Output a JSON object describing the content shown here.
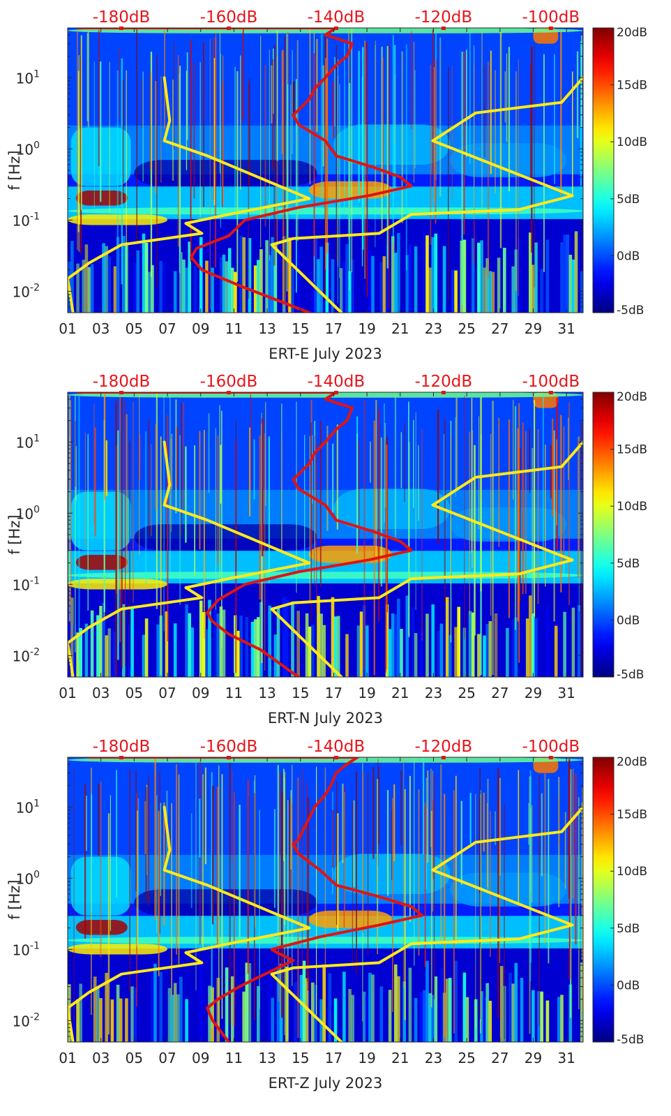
{
  "colors": {
    "reference_curve": "#ffea1a",
    "noise_curve": "#e01414",
    "top_labels": "#e8141a",
    "axis_text": "#262626",
    "colormap": "jet"
  },
  "chart_data": [
    {
      "type": "heatmap",
      "xlabel": "ERT-E July 2023",
      "ylabel": "f [Hz]",
      "x_tick_labels": [
        "01",
        "03",
        "05",
        "07",
        "09",
        "11",
        "13",
        "15",
        "17",
        "19",
        "21",
        "23",
        "25",
        "27",
        "29",
        "31"
      ],
      "x_tick_days": [
        1,
        3,
        5,
        7,
        9,
        11,
        13,
        15,
        17,
        19,
        21,
        23,
        25,
        27,
        29,
        31
      ],
      "xlim": [
        1,
        32
      ],
      "y_scale": "log",
      "ylim": [
        0.005,
        50
      ],
      "y_tick_labels": [
        {
          "base": "10",
          "exp": "-2"
        },
        {
          "base": "10",
          "exp": "-1"
        },
        {
          "base": "10",
          "exp": "0"
        },
        {
          "base": "10",
          "exp": "1"
        }
      ],
      "y_tick_values": [
        0.01,
        0.1,
        1,
        10
      ],
      "top_axis_labels": [
        "-180dB",
        "-160dB",
        "-140dB",
        "-120dB",
        "-100dB"
      ],
      "top_axis_values": [
        -180,
        -160,
        -140,
        -120,
        -100
      ],
      "top_axis_range": [
        -190,
        -94
      ],
      "colorbar": {
        "labels": [
          "20dB",
          "15dB",
          "10dB",
          "5dB",
          "0dB",
          "-5dB"
        ],
        "values": [
          20,
          15,
          10,
          5,
          0,
          -5
        ],
        "range": [
          -5,
          20
        ]
      },
      "yellow_curves": [
        [
          [
            -172,
            10
          ],
          [
            -171,
            2.5
          ],
          [
            -172,
            1.3
          ],
          [
            -164,
            0.8
          ],
          [
            -145,
            0.2
          ],
          [
            -160,
            0.12
          ],
          [
            -168,
            0.09
          ],
          [
            -165,
            0.065
          ],
          [
            -180,
            0.045
          ],
          [
            -186,
            0.025
          ],
          [
            -190,
            0.015
          ],
          [
            -189,
            0.005
          ]
        ],
        [
          [
            -94,
            10
          ],
          [
            -98,
            4.5
          ],
          [
            -114,
            3.2
          ],
          [
            -122,
            1.3
          ],
          [
            -96,
            0.22
          ],
          [
            -106,
            0.14
          ],
          [
            -126,
            0.12
          ],
          [
            -132,
            0.065
          ],
          [
            -148,
            0.055
          ],
          [
            -152,
            0.045
          ],
          [
            -139,
            0.005
          ]
        ]
      ],
      "red_curve": [
        [
          -188,
          50
        ],
        [
          -140,
          50
        ],
        [
          -142,
          40
        ],
        [
          -137,
          30
        ],
        [
          -138,
          20
        ],
        [
          -140,
          15
        ],
        [
          -142,
          10
        ],
        [
          -144,
          7
        ],
        [
          -145,
          5
        ],
        [
          -147,
          3.5
        ],
        [
          -148,
          3
        ],
        [
          -147,
          2.2
        ],
        [
          -142,
          1.3
        ],
        [
          -140,
          0.8
        ],
        [
          -133,
          0.55
        ],
        [
          -128,
          0.4
        ],
        [
          -126,
          0.3
        ],
        [
          -134,
          0.22
        ],
        [
          -147,
          0.15
        ],
        [
          -157,
          0.1
        ],
        [
          -160,
          0.06
        ],
        [
          -166,
          0.04
        ],
        [
          -167,
          0.03
        ],
        [
          -165,
          0.02
        ],
        [
          -158,
          0.012
        ],
        [
          -145,
          0.005
        ]
      ]
    },
    {
      "type": "heatmap",
      "xlabel": "ERT-N July 2023",
      "ylabel": "f [Hz]",
      "x_tick_labels": [
        "01",
        "03",
        "05",
        "07",
        "09",
        "11",
        "13",
        "15",
        "17",
        "19",
        "21",
        "23",
        "25",
        "27",
        "29",
        "31"
      ],
      "x_tick_days": [
        1,
        3,
        5,
        7,
        9,
        11,
        13,
        15,
        17,
        19,
        21,
        23,
        25,
        27,
        29,
        31
      ],
      "xlim": [
        1,
        32
      ],
      "y_scale": "log",
      "ylim": [
        0.005,
        50
      ],
      "y_tick_labels": [
        {
          "base": "10",
          "exp": "-2"
        },
        {
          "base": "10",
          "exp": "-1"
        },
        {
          "base": "10",
          "exp": "0"
        },
        {
          "base": "10",
          "exp": "1"
        }
      ],
      "y_tick_values": [
        0.01,
        0.1,
        1,
        10
      ],
      "top_axis_labels": [
        "-180dB",
        "-160dB",
        "-140dB",
        "-120dB",
        "-100dB"
      ],
      "top_axis_values": [
        -180,
        -160,
        -140,
        -120,
        -100
      ],
      "top_axis_range": [
        -190,
        -94
      ],
      "colorbar": {
        "labels": [
          "20dB",
          "15dB",
          "10dB",
          "5dB",
          "0dB",
          "-5dB"
        ],
        "values": [
          20,
          15,
          10,
          5,
          0,
          -5
        ],
        "range": [
          -5,
          20
        ]
      },
      "yellow_curves": [
        [
          [
            -172,
            10
          ],
          [
            -171,
            2.5
          ],
          [
            -172,
            1.3
          ],
          [
            -164,
            0.8
          ],
          [
            -145,
            0.2
          ],
          [
            -160,
            0.12
          ],
          [
            -168,
            0.09
          ],
          [
            -165,
            0.065
          ],
          [
            -180,
            0.045
          ],
          [
            -186,
            0.025
          ],
          [
            -190,
            0.015
          ],
          [
            -189,
            0.005
          ]
        ],
        [
          [
            -94,
            10
          ],
          [
            -98,
            4.5
          ],
          [
            -114,
            3.2
          ],
          [
            -122,
            1.3
          ],
          [
            -96,
            0.22
          ],
          [
            -106,
            0.14
          ],
          [
            -126,
            0.12
          ],
          [
            -132,
            0.065
          ],
          [
            -148,
            0.055
          ],
          [
            -152,
            0.045
          ],
          [
            -139,
            0.005
          ]
        ]
      ],
      "red_curve": [
        [
          -188,
          50
        ],
        [
          -140,
          50
        ],
        [
          -142,
          40
        ],
        [
          -137,
          30
        ],
        [
          -138,
          20
        ],
        [
          -140,
          15
        ],
        [
          -142,
          10
        ],
        [
          -144,
          7
        ],
        [
          -145,
          5
        ],
        [
          -147,
          3.5
        ],
        [
          -148,
          3
        ],
        [
          -147,
          2.2
        ],
        [
          -142,
          1.3
        ],
        [
          -140,
          0.8
        ],
        [
          -133,
          0.55
        ],
        [
          -128,
          0.4
        ],
        [
          -126,
          0.3
        ],
        [
          -134,
          0.22
        ],
        [
          -147,
          0.15
        ],
        [
          -157,
          0.1
        ],
        [
          -162,
          0.06
        ],
        [
          -164,
          0.04
        ],
        [
          -163,
          0.03
        ],
        [
          -160,
          0.02
        ],
        [
          -154,
          0.012
        ],
        [
          -147,
          0.005
        ]
      ]
    },
    {
      "type": "heatmap",
      "xlabel": "ERT-Z July 2023",
      "ylabel": "f [Hz]",
      "x_tick_labels": [
        "01",
        "03",
        "05",
        "07",
        "09",
        "11",
        "13",
        "15",
        "17",
        "19",
        "21",
        "23",
        "25",
        "27",
        "29",
        "31"
      ],
      "x_tick_days": [
        1,
        3,
        5,
        7,
        9,
        11,
        13,
        15,
        17,
        19,
        21,
        23,
        25,
        27,
        29,
        31
      ],
      "xlim": [
        1,
        32
      ],
      "y_scale": "log",
      "ylim": [
        0.005,
        50
      ],
      "y_tick_labels": [
        {
          "base": "10",
          "exp": "-2"
        },
        {
          "base": "10",
          "exp": "-1"
        },
        {
          "base": "10",
          "exp": "0"
        },
        {
          "base": "10",
          "exp": "1"
        }
      ],
      "y_tick_values": [
        0.01,
        0.1,
        1,
        10
      ],
      "top_axis_labels": [
        "-180dB",
        "-160dB",
        "-140dB",
        "-120dB",
        "-100dB"
      ],
      "top_axis_values": [
        -180,
        -160,
        -140,
        -120,
        -100
      ],
      "top_axis_range": [
        -190,
        -94
      ],
      "colorbar": {
        "labels": [
          "20dB",
          "15dB",
          "10dB",
          "5dB",
          "0dB",
          "-5dB"
        ],
        "values": [
          20,
          15,
          10,
          5,
          0,
          -5
        ],
        "range": [
          -5,
          20
        ]
      },
      "yellow_curves": [
        [
          [
            -172,
            10
          ],
          [
            -171,
            2.5
          ],
          [
            -172,
            1.3
          ],
          [
            -164,
            0.8
          ],
          [
            -145,
            0.2
          ],
          [
            -160,
            0.12
          ],
          [
            -168,
            0.09
          ],
          [
            -165,
            0.065
          ],
          [
            -180,
            0.045
          ],
          [
            -186,
            0.025
          ],
          [
            -190,
            0.015
          ],
          [
            -189,
            0.005
          ]
        ],
        [
          [
            -94,
            10
          ],
          [
            -98,
            4.5
          ],
          [
            -114,
            3.2
          ],
          [
            -122,
            1.3
          ],
          [
            -96,
            0.22
          ],
          [
            -106,
            0.14
          ],
          [
            -126,
            0.12
          ],
          [
            -132,
            0.065
          ],
          [
            -148,
            0.055
          ],
          [
            -152,
            0.045
          ],
          [
            -139,
            0.005
          ]
        ]
      ],
      "red_curve": [
        [
          -186,
          50
        ],
        [
          -136,
          50
        ],
        [
          -138,
          40
        ],
        [
          -140,
          30
        ],
        [
          -141,
          20
        ],
        [
          -142,
          15
        ],
        [
          -144,
          10
        ],
        [
          -145,
          7
        ],
        [
          -146,
          5
        ],
        [
          -147,
          3.5
        ],
        [
          -148,
          3
        ],
        [
          -147,
          2.2
        ],
        [
          -143,
          1.3
        ],
        [
          -140,
          0.8
        ],
        [
          -132,
          0.55
        ],
        [
          -126,
          0.4
        ],
        [
          -124,
          0.3
        ],
        [
          -132,
          0.22
        ],
        [
          -143,
          0.15
        ],
        [
          -152,
          0.1
        ],
        [
          -151,
          0.09
        ],
        [
          -148,
          0.07
        ],
        [
          -152,
          0.05
        ],
        [
          -158,
          0.03
        ],
        [
          -162,
          0.02
        ],
        [
          -164,
          0.015
        ],
        [
          -163,
          0.01
        ],
        [
          -160,
          0.005
        ]
      ]
    }
  ]
}
